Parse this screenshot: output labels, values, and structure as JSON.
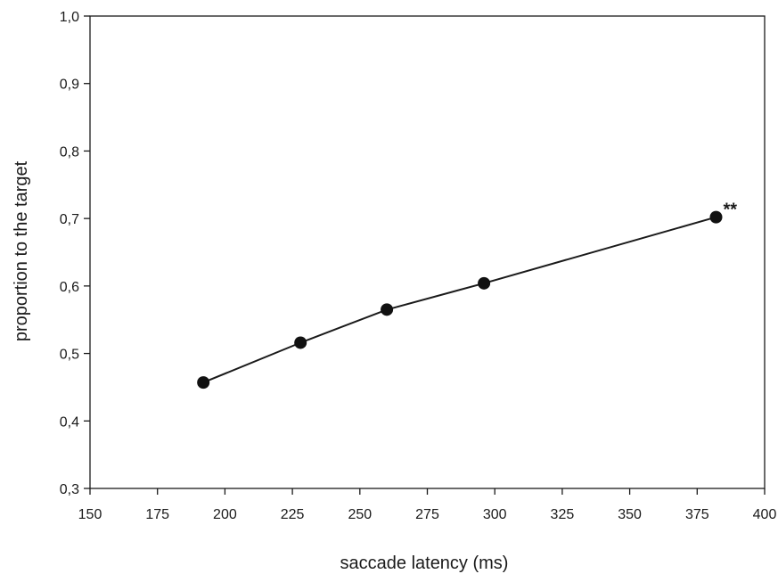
{
  "chart_data": {
    "type": "line",
    "xlabel": "saccade latency (ms)",
    "ylabel": "proportion to the target",
    "xlim": [
      150,
      400
    ],
    "ylim": [
      0.3,
      1.0
    ],
    "x_ticks": [
      150,
      175,
      200,
      225,
      250,
      275,
      300,
      325,
      350,
      375,
      400
    ],
    "x_tick_labels": [
      "150",
      "175",
      "200",
      "225",
      "250",
      "275",
      "300",
      "325",
      "350",
      "375",
      "400"
    ],
    "y_ticks": [
      0.3,
      0.4,
      0.5,
      0.6,
      0.7,
      0.8,
      0.9,
      1.0
    ],
    "y_tick_labels": [
      "0,3",
      "0,4",
      "0,5",
      "0,6",
      "0,7",
      "0,8",
      "0,9",
      "1,0"
    ],
    "grid": false,
    "series": [
      {
        "x": [
          192,
          228,
          260,
          296,
          382
        ],
        "y": [
          0.457,
          0.516,
          0.565,
          0.604,
          0.702
        ]
      }
    ],
    "annotations": [
      {
        "text": "**",
        "x": 382,
        "y": 0.702
      }
    ],
    "colors": {
      "line": "#1a1a1a",
      "marker": "#111111",
      "axis": "#1a1a1a"
    }
  }
}
